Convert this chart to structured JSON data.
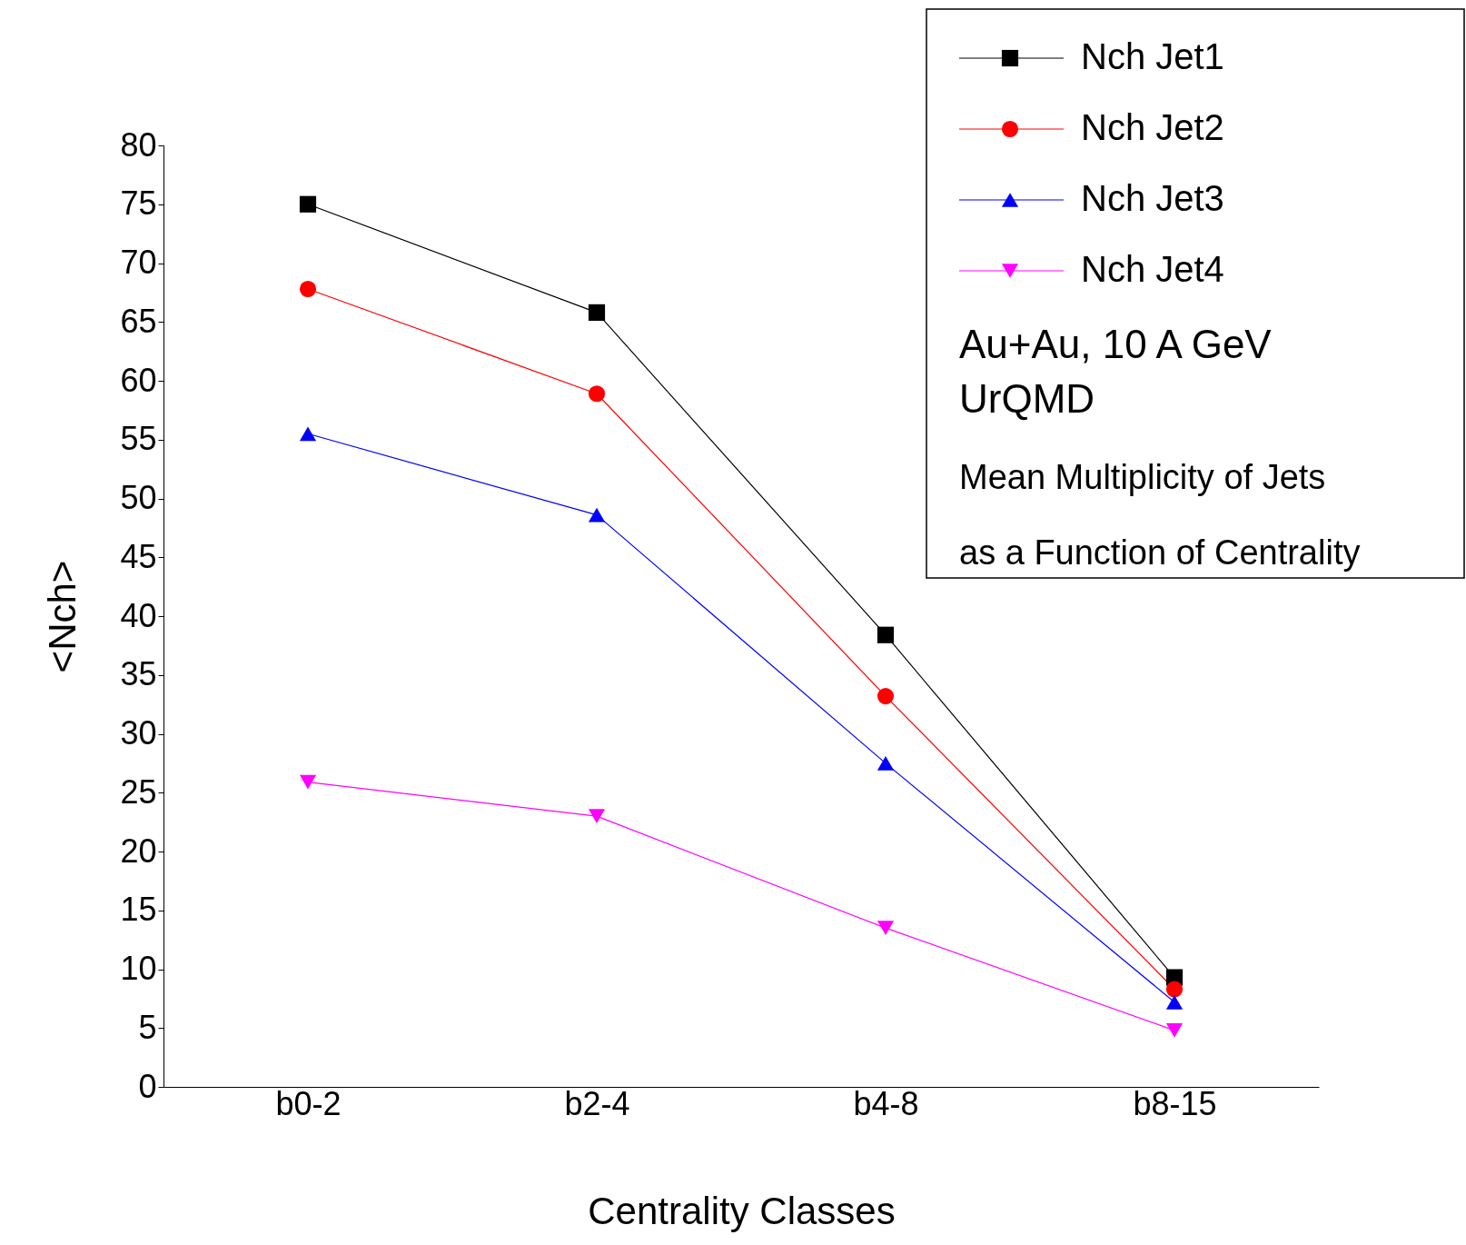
{
  "chart_data": {
    "type": "line",
    "xlabel": "Centrality Classes",
    "ylabel": "<Nch>",
    "categories": [
      "b0-2",
      "b2-4",
      "b4-8",
      "b8-15"
    ],
    "series": [
      {
        "name": "Nch Jet1",
        "color": "#000000",
        "marker": "square",
        "values": [
          75.0,
          65.8,
          38.4,
          9.3
        ]
      },
      {
        "name": "Nch Jet2",
        "color": "#ff0000",
        "marker": "circle",
        "values": [
          67.8,
          58.9,
          33.2,
          8.3
        ]
      },
      {
        "name": "Nch Jet3",
        "color": "#0000ff",
        "marker": "triangle",
        "values": [
          55.5,
          48.6,
          27.5,
          7.2
        ]
      },
      {
        "name": "Nch Jet4",
        "color": "#ff00ff",
        "marker": "triangle_down",
        "values": [
          25.9,
          23.0,
          13.5,
          4.8
        ]
      }
    ],
    "ylim": [
      0,
      80
    ],
    "yticks": [
      0,
      5,
      10,
      15,
      20,
      25,
      30,
      35,
      40,
      45,
      50,
      55,
      60,
      65,
      70,
      75,
      80
    ],
    "grid": false,
    "legend": "top right",
    "line_style": "solid",
    "annotations": [
      "Au+Au, 10 A GeV",
      "UrQMD",
      "Mean Multiplicity of Jets",
      "as a Function of Centrality"
    ]
  }
}
